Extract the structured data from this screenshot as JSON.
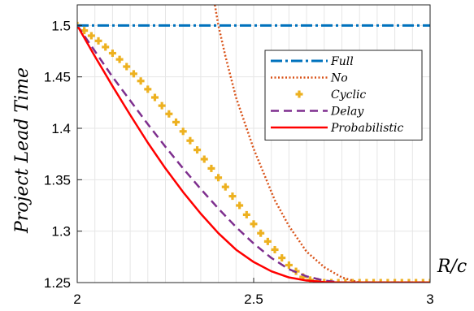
{
  "chart_data": {
    "type": "line",
    "title": "",
    "xlabel": "R/c",
    "ylabel": "Project Lead Time",
    "xlim": [
      2,
      3
    ],
    "ylim": [
      1.25,
      1.52
    ],
    "xticks": [
      "2",
      "2.5",
      "3"
    ],
    "yticks": [
      "1.25",
      "1.3",
      "1.35",
      "1.4",
      "1.45",
      "1.5"
    ],
    "grid": true,
    "legend_position": "upper-right",
    "series": [
      {
        "name": "Full",
        "style": "dash-dot",
        "color": "#0072bd",
        "x": [
          2,
          3
        ],
        "y": [
          1.5,
          1.5
        ]
      },
      {
        "name": "No",
        "style": "dotted",
        "color": "#d95319",
        "x": [
          2.39,
          2.4,
          2.42,
          2.45,
          2.48,
          2.5,
          2.53,
          2.56,
          2.6,
          2.65,
          2.7,
          2.75,
          2.8,
          2.9,
          3.0
        ],
        "y": [
          1.52,
          1.5,
          1.47,
          1.43,
          1.4,
          1.38,
          1.355,
          1.33,
          1.305,
          1.28,
          1.265,
          1.255,
          1.25,
          1.25,
          1.25
        ]
      },
      {
        "name": "Cyclic",
        "style": "plus-markers",
        "color": "#edb120",
        "x": [
          2.0,
          2.02,
          2.04,
          2.06,
          2.08,
          2.1,
          2.12,
          2.14,
          2.16,
          2.18,
          2.2,
          2.22,
          2.24,
          2.26,
          2.28,
          2.3,
          2.32,
          2.34,
          2.36,
          2.38,
          2.4,
          2.42,
          2.44,
          2.46,
          2.48,
          2.5,
          2.52,
          2.54,
          2.56,
          2.58,
          2.6,
          2.62,
          2.64,
          2.66,
          2.68,
          2.7,
          2.72,
          2.74,
          2.76,
          2.78,
          2.8,
          2.82,
          2.84,
          2.86,
          2.88,
          2.9,
          2.92,
          2.94,
          2.96,
          2.98,
          3.0
        ],
        "y": [
          1.5,
          1.495,
          1.49,
          1.485,
          1.479,
          1.473,
          1.467,
          1.46,
          1.453,
          1.446,
          1.438,
          1.43,
          1.422,
          1.414,
          1.406,
          1.397,
          1.388,
          1.379,
          1.37,
          1.361,
          1.352,
          1.343,
          1.334,
          1.325,
          1.316,
          1.307,
          1.298,
          1.29,
          1.282,
          1.274,
          1.267,
          1.261,
          1.2555,
          1.2525,
          1.251,
          1.25,
          1.25,
          1.25,
          1.25,
          1.25,
          1.25,
          1.25,
          1.25,
          1.25,
          1.25,
          1.25,
          1.25,
          1.25,
          1.25,
          1.25,
          1.25
        ]
      },
      {
        "name": "Delay",
        "style": "dashed",
        "color": "#7e2f8e",
        "x": [
          2.0,
          2.05,
          2.1,
          2.15,
          2.2,
          2.25,
          2.3,
          2.35,
          2.4,
          2.45,
          2.5,
          2.55,
          2.6,
          2.65,
          2.7,
          2.75,
          2.8,
          2.9,
          3.0
        ],
        "y": [
          1.5,
          1.475,
          1.45,
          1.427,
          1.404,
          1.382,
          1.361,
          1.341,
          1.322,
          1.304,
          1.288,
          1.274,
          1.263,
          1.256,
          1.252,
          1.25,
          1.25,
          1.25,
          1.25
        ]
      },
      {
        "name": "Probabilistic",
        "style": "solid",
        "color": "#ff0000",
        "x": [
          2.0,
          2.05,
          2.1,
          2.15,
          2.2,
          2.25,
          2.3,
          2.35,
          2.4,
          2.45,
          2.5,
          2.55,
          2.6,
          2.65,
          2.7,
          2.75,
          2.8,
          2.9,
          3.0
        ],
        "y": [
          1.5,
          1.47,
          1.441,
          1.413,
          1.386,
          1.361,
          1.338,
          1.317,
          1.298,
          1.282,
          1.27,
          1.261,
          1.255,
          1.252,
          1.2505,
          1.25,
          1.25,
          1.25,
          1.25
        ]
      }
    ]
  }
}
